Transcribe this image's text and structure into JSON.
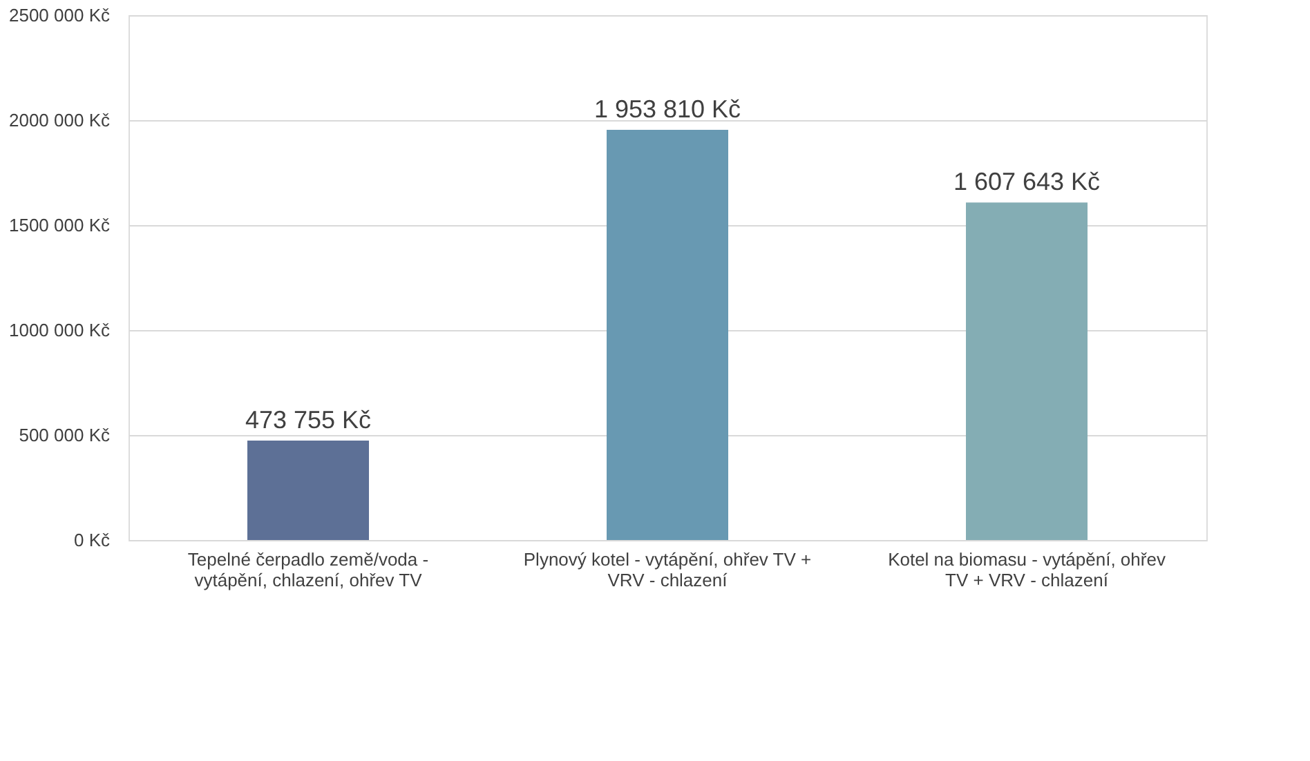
{
  "chart_data": {
    "type": "bar",
    "categories": [
      "Tepelné čerpadlo země/voda - vytápění, chlazení, ohřev TV",
      "Plynový kotel - vytápění, ohřev TV + VRV - chlazení",
      "Kotel na biomasu - vytápění, ohřev TV + VRV - chlazení"
    ],
    "values": [
      473755,
      1953810,
      1607643
    ],
    "colors": [
      "#5d7096",
      "#6899b2",
      "#84adb4"
    ],
    "value_labels": [
      "473 755 Kč",
      "1 953 810 Kč",
      "1 607 643 Kč"
    ],
    "ylim": [
      0,
      2500000
    ],
    "yticks": [
      {
        "value": 0,
        "label": "0 Kč"
      },
      {
        "value": 500000,
        "label": "500 000 Kč"
      },
      {
        "value": 1000000,
        "label": "1000 000 Kč"
      },
      {
        "value": 1500000,
        "label": "1500 000 Kč"
      },
      {
        "value": 2000000,
        "label": "2000 000 Kč"
      },
      {
        "value": 2500000,
        "label": "2500 000 Kč"
      }
    ],
    "grid": "y"
  }
}
